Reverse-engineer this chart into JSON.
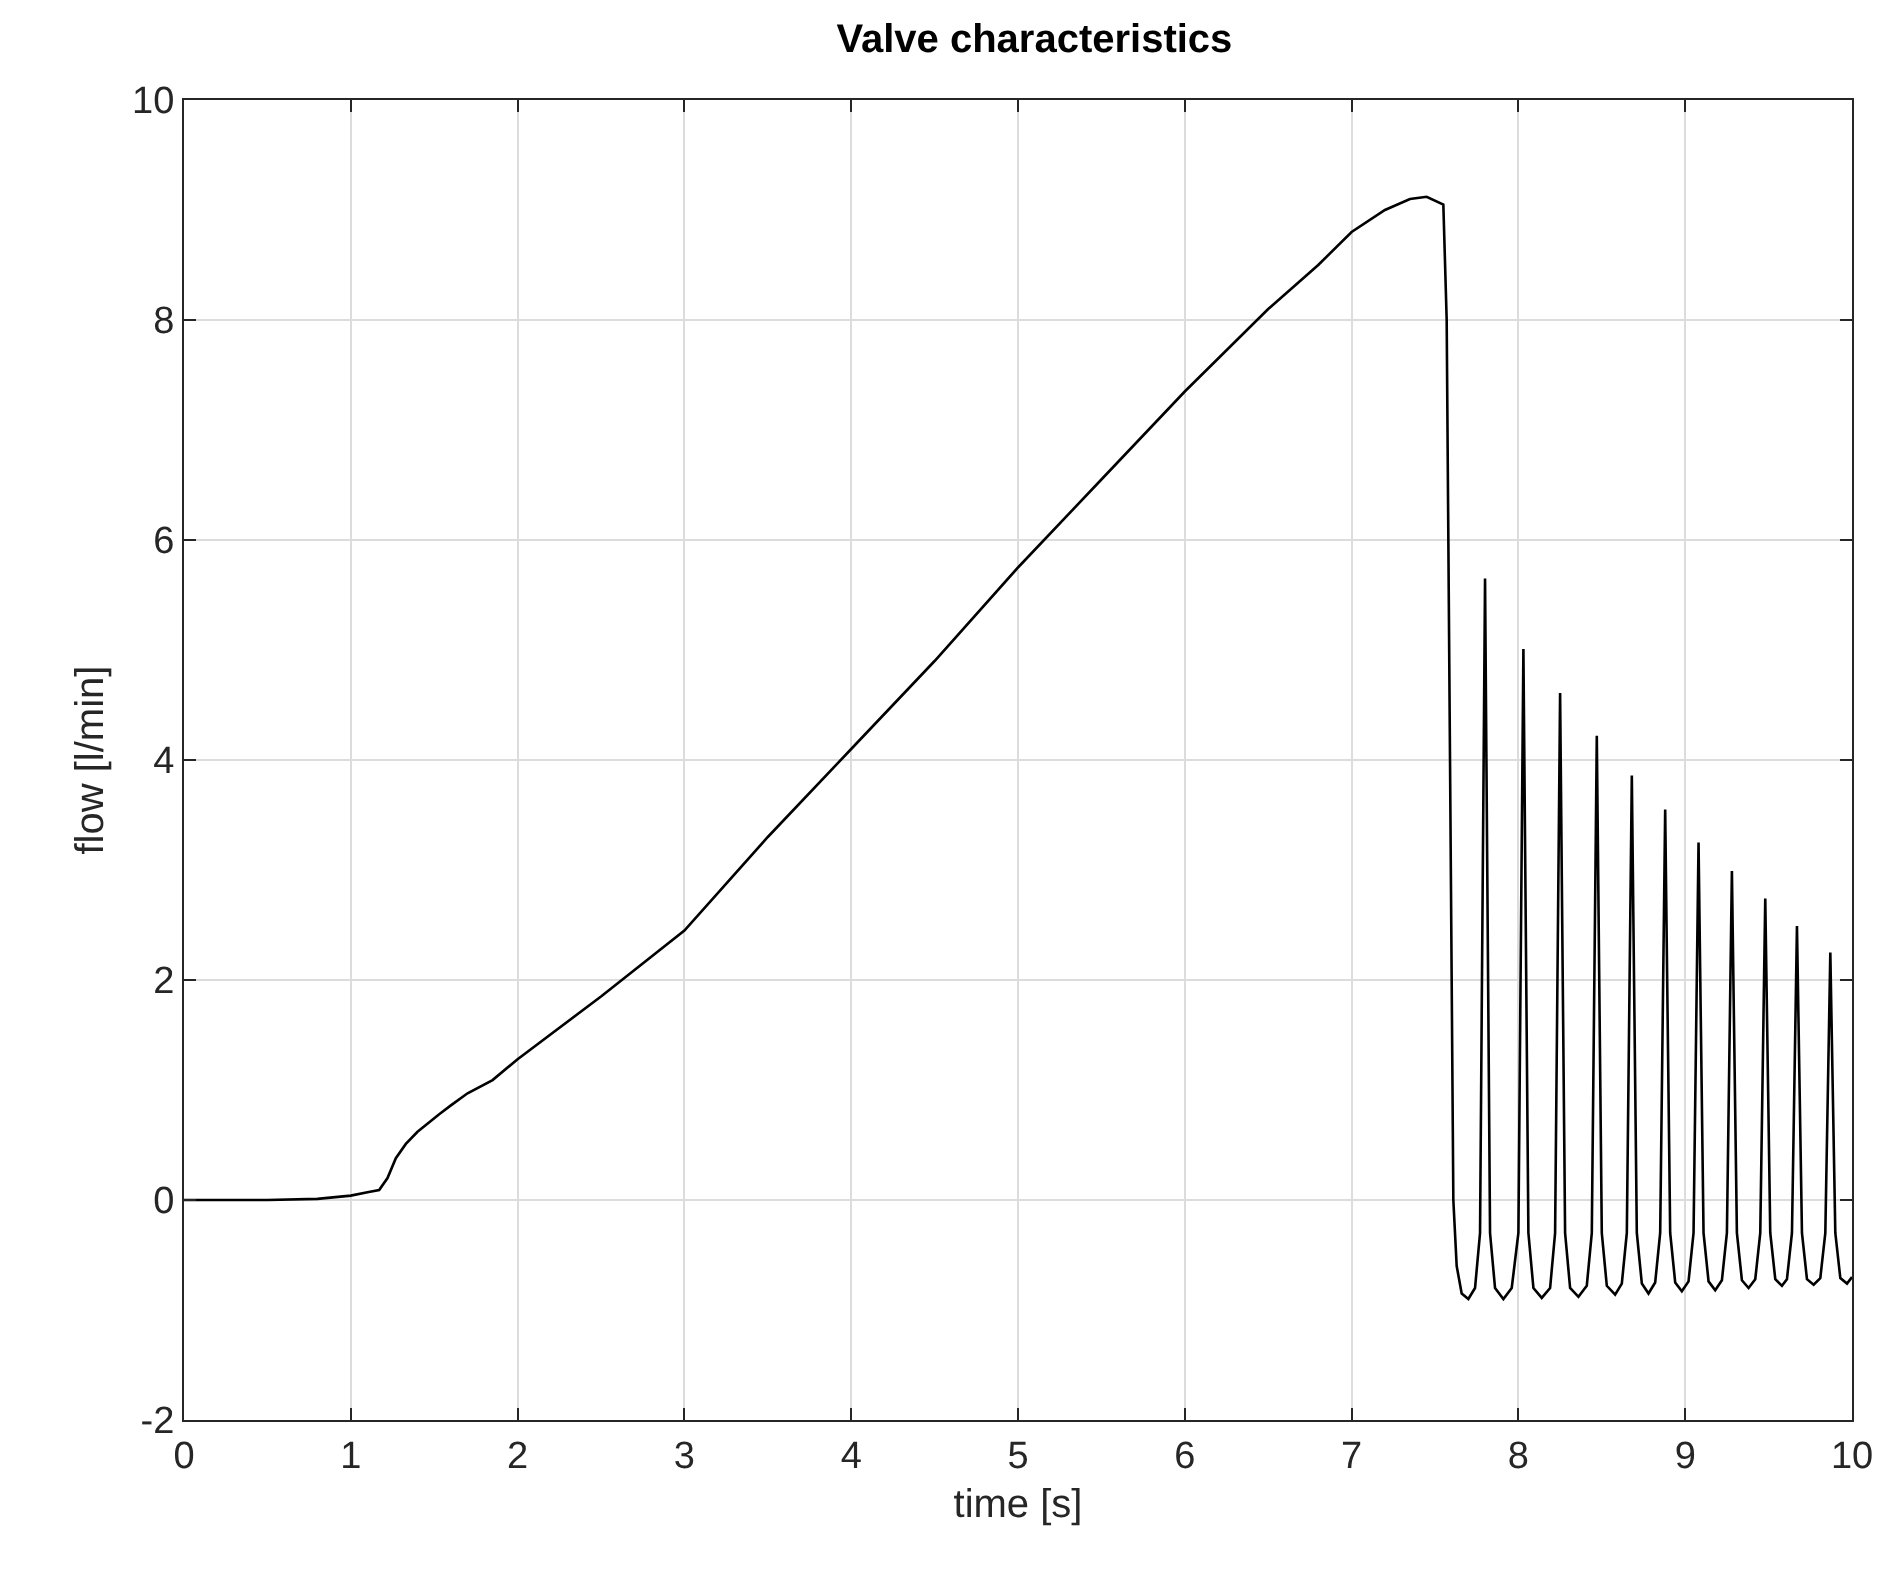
{
  "chart_data": {
    "type": "line",
    "title": "Valve characteristics",
    "xlabel": "time [s]",
    "ylabel": "flow [l/min]",
    "xlim": [
      0,
      10
    ],
    "ylim": [
      -2,
      10
    ],
    "xticks": [
      0,
      1,
      2,
      3,
      4,
      5,
      6,
      7,
      8,
      9,
      10
    ],
    "yticks": [
      -2,
      0,
      2,
      4,
      6,
      8,
      10
    ],
    "grid": true,
    "marker": "none",
    "line_style": "solid",
    "series": [
      {
        "color": "#000000",
        "x": [
          0,
          0.5,
          0.8,
          1.0,
          1.1,
          1.17,
          1.22,
          1.27,
          1.33,
          1.4,
          1.53,
          1.6,
          1.7,
          1.85,
          2.0,
          2.5,
          3.0,
          3.5,
          4.0,
          4.5,
          5.0,
          5.5,
          6.0,
          6.5,
          6.8,
          7.0,
          7.2,
          7.35,
          7.45,
          7.55,
          7.57,
          7.59,
          7.61,
          7.63,
          7.66,
          7.7,
          7.74,
          7.77,
          7.8,
          7.83,
          7.86,
          7.91,
          7.96,
          8.0,
          8.03,
          8.06,
          8.09,
          8.14,
          8.19,
          8.22,
          8.25,
          8.28,
          8.31,
          8.36,
          8.41,
          8.44,
          8.47,
          8.5,
          8.53,
          8.58,
          8.62,
          8.65,
          8.68,
          8.71,
          8.74,
          8.78,
          8.82,
          8.85,
          8.88,
          8.91,
          8.94,
          8.98,
          9.02,
          9.05,
          9.08,
          9.11,
          9.14,
          9.18,
          9.22,
          9.25,
          9.28,
          9.31,
          9.34,
          9.38,
          9.42,
          9.45,
          9.48,
          9.51,
          9.54,
          9.58,
          9.61,
          9.64,
          9.67,
          9.7,
          9.73,
          9.77,
          9.81,
          9.84,
          9.87,
          9.9,
          9.93,
          9.97,
          10.0
        ],
        "values": [
          0,
          0,
          0.01,
          0.04,
          0.07,
          0.09,
          0.2,
          0.38,
          0.51,
          0.62,
          0.78,
          0.86,
          0.97,
          1.09,
          1.28,
          1.85,
          2.45,
          3.3,
          4.1,
          4.9,
          5.75,
          6.55,
          7.35,
          8.1,
          8.5,
          8.8,
          9.0,
          9.1,
          9.12,
          9.05,
          8.0,
          4.0,
          0.0,
          -0.6,
          -0.85,
          -0.9,
          -0.8,
          -0.3,
          5.65,
          -0.3,
          -0.8,
          -0.9,
          -0.8,
          -0.3,
          5.01,
          -0.3,
          -0.8,
          -0.89,
          -0.8,
          -0.3,
          4.61,
          -0.3,
          -0.8,
          -0.88,
          -0.78,
          -0.3,
          4.22,
          -0.3,
          -0.78,
          -0.86,
          -0.76,
          -0.3,
          3.86,
          -0.3,
          -0.76,
          -0.85,
          -0.75,
          -0.3,
          3.55,
          -0.3,
          -0.75,
          -0.83,
          -0.74,
          -0.3,
          3.25,
          -0.3,
          -0.74,
          -0.82,
          -0.73,
          -0.3,
          2.99,
          -0.3,
          -0.73,
          -0.8,
          -0.72,
          -0.3,
          2.74,
          -0.3,
          -0.72,
          -0.78,
          -0.72,
          -0.3,
          2.49,
          -0.3,
          -0.72,
          -0.77,
          -0.71,
          -0.3,
          2.25,
          -0.3,
          -0.71,
          -0.76,
          -0.7
        ]
      }
    ]
  }
}
